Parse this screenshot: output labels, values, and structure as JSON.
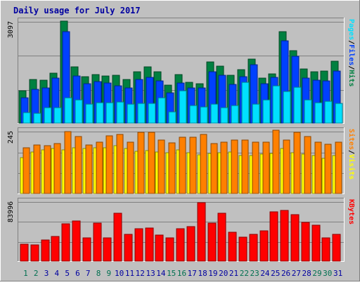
{
  "chart_data": [
    {
      "type": "bar",
      "title": "Daily usage for July 2017",
      "categories": [
        "1",
        "2",
        "3",
        "4",
        "5",
        "6",
        "7",
        "8",
        "9",
        "10",
        "11",
        "12",
        "13",
        "14",
        "15",
        "16",
        "17",
        "18",
        "19",
        "20",
        "21",
        "22",
        "23",
        "24",
        "25",
        "26",
        "27",
        "28",
        "29",
        "30",
        "31"
      ],
      "weekend_days": [
        "1",
        "2",
        "8",
        "9",
        "15",
        "16",
        "22",
        "23",
        "29",
        "30"
      ],
      "y_max_label": "3097",
      "ylabel": [
        "Pages",
        "/",
        "Files",
        "/",
        "Hits"
      ],
      "ylim": [
        0,
        3097
      ],
      "series": [
        {
          "name": "Hits",
          "color": "#008040",
          "values": [
            980,
            1320,
            1310,
            1520,
            3097,
            1700,
            1420,
            1480,
            1440,
            1450,
            1330,
            1560,
            1700,
            1560,
            1150,
            1480,
            1240,
            1200,
            1860,
            1740,
            1460,
            1620,
            1940,
            1360,
            1500,
            2780,
            2200,
            1640,
            1560,
            1580,
            1880
          ]
        },
        {
          "name": "Files",
          "color": "#0040ff",
          "values": [
            770,
            1030,
            1070,
            1360,
            2780,
            1440,
            1200,
            1260,
            1210,
            1130,
            1060,
            1320,
            1390,
            1290,
            920,
            1220,
            1070,
            1060,
            1560,
            1460,
            1170,
            1420,
            1780,
            1190,
            1380,
            2500,
            2020,
            1370,
            1300,
            1290,
            1570
          ]
        },
        {
          "name": "Pages",
          "color": "#00e0ff",
          "values": [
            320,
            300,
            480,
            480,
            760,
            700,
            570,
            620,
            620,
            640,
            570,
            600,
            600,
            760,
            340,
            980,
            540,
            500,
            570,
            470,
            530,
            1240,
            580,
            700,
            1140,
            960,
            1080,
            700,
            610,
            670,
            590
          ]
        }
      ]
    },
    {
      "type": "bar",
      "categories": [
        "1",
        "2",
        "3",
        "4",
        "5",
        "6",
        "7",
        "8",
        "9",
        "10",
        "11",
        "12",
        "13",
        "14",
        "15",
        "16",
        "17",
        "18",
        "19",
        "20",
        "21",
        "22",
        "23",
        "24",
        "25",
        "26",
        "27",
        "28",
        "29",
        "30",
        "31"
      ],
      "y_max_label": "245",
      "ylabel": [
        "Sites",
        "/",
        "Visits"
      ],
      "ylim": [
        0,
        245
      ],
      "series": [
        {
          "name": "Visits",
          "color": "#ffff00",
          "values": [
            140,
            162,
            172,
            176,
            172,
            180,
            176,
            178,
            178,
            186,
            176,
            165,
            168,
            162,
            160,
            170,
            160,
            152,
            158,
            160,
            162,
            150,
            150,
            153,
            156,
            176,
            160,
            155,
            148,
            138,
            150
          ]
        },
        {
          "name": "Sites",
          "color": "#ff8000",
          "values": [
            180,
            190,
            188,
            196,
            242,
            222,
            190,
            202,
            226,
            232,
            202,
            240,
            240,
            208,
            198,
            220,
            220,
            230,
            196,
            200,
            208,
            208,
            202,
            200,
            248,
            210,
            240,
            222,
            202,
            192,
            200
          ]
        }
      ]
    },
    {
      "type": "bar",
      "categories": [
        "1",
        "2",
        "3",
        "4",
        "5",
        "6",
        "7",
        "8",
        "9",
        "10",
        "11",
        "12",
        "13",
        "14",
        "15",
        "16",
        "17",
        "18",
        "19",
        "20",
        "21",
        "22",
        "23",
        "24",
        "25",
        "26",
        "27",
        "28",
        "29",
        "30",
        "31"
      ],
      "y_max_label": "83996",
      "ylabel": [
        "KBytes"
      ],
      "ylim": [
        0,
        83996
      ],
      "series": [
        {
          "name": "KBytes",
          "color": "#ff0000",
          "values": [
            24000,
            22900,
            29500,
            34300,
            52000,
            56700,
            32800,
            53000,
            33000,
            66800,
            37600,
            45300,
            46500,
            37000,
            32900,
            45300,
            48000,
            82000,
            53200,
            67000,
            40500,
            34000,
            37100,
            42100,
            69100,
            70800,
            65500,
            54200,
            50800,
            32200,
            37600
          ]
        }
      ]
    }
  ],
  "colors": {
    "background": "#c0c0c0",
    "title": "#0000a0",
    "weekday_label": "#0000a0",
    "weekend_label": "#007050",
    "hits": "#008040",
    "files": "#0040ff",
    "pages": "#00e0ff",
    "sites": "#ff8000",
    "visits": "#ffff00",
    "kbytes": "#ff0000"
  }
}
